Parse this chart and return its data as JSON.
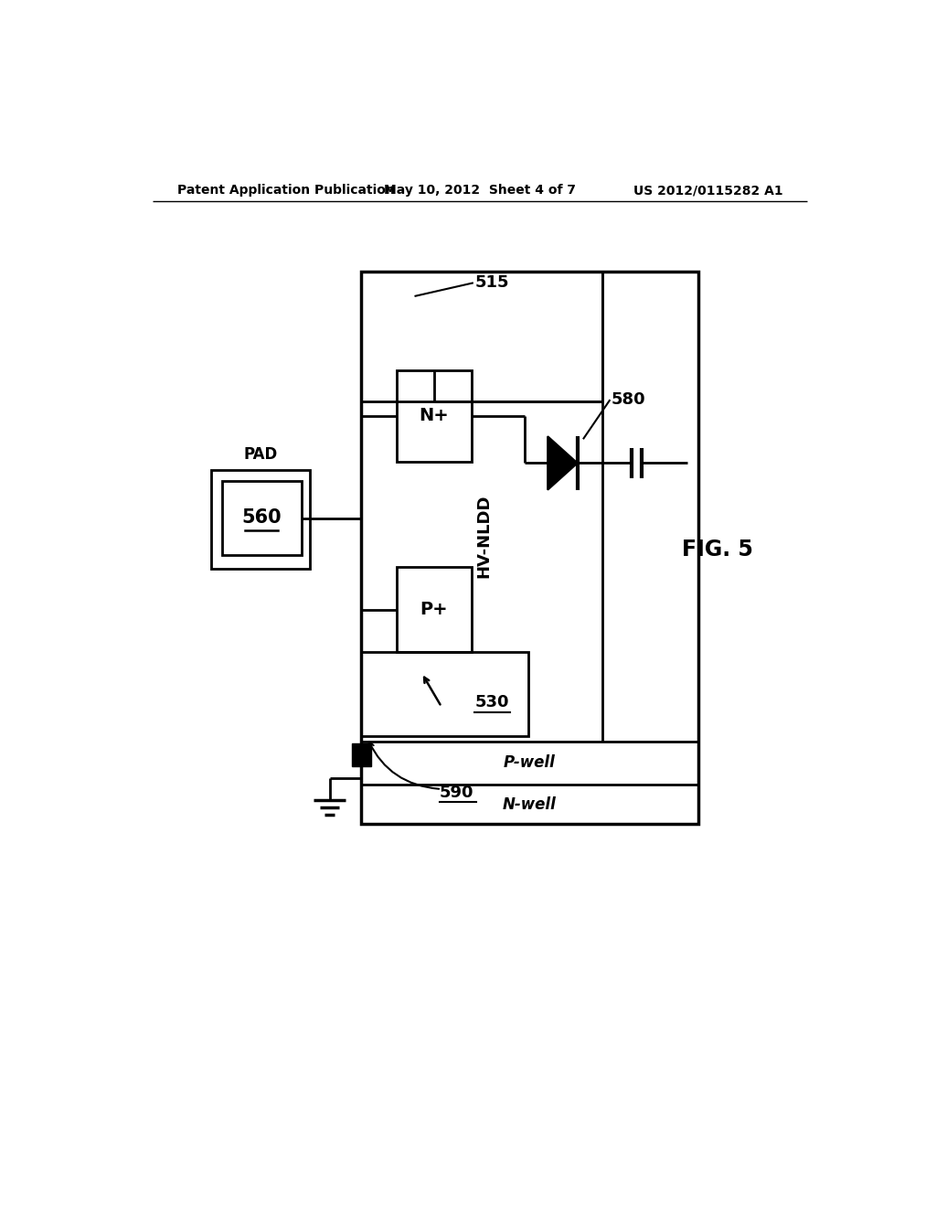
{
  "bg_color": "#ffffff",
  "line_color": "#000000",
  "header_left": "Patent Application Publication",
  "header_mid": "May 10, 2012  Sheet 4 of 7",
  "header_right": "US 2012/0115282 A1",
  "fig_label": "FIG. 5",
  "label_515": "515",
  "label_580": "580",
  "label_560": "560",
  "label_530": "530",
  "label_590": "590",
  "label_pad": "PAD",
  "label_nplus": "N+",
  "label_pplus": "P+",
  "label_hvnldd": "HV-NLDD",
  "label_pwell": "P-well",
  "label_nwell": "N-well"
}
